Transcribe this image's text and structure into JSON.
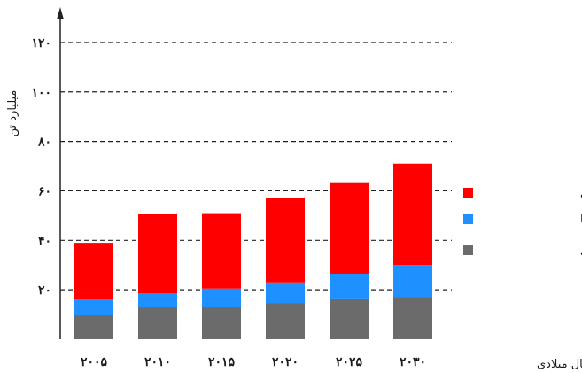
{
  "chart_data": {
    "type": "bar",
    "stacked": true,
    "categories": [
      "۲۰۰۵",
      "۲۰۱۰",
      "۲۰۱۵",
      "۲۰۲۰",
      "۲۰۲۵",
      "۲۰۳۰"
    ],
    "series": [
      {
        "name": "سوخت‌های فسیلی",
        "color": "#6b6b6b",
        "values": [
          10,
          13,
          13,
          14.5,
          16.5,
          17
        ]
      },
      {
        "name": "فلزها",
        "color": "#1e90ff",
        "values": [
          6,
          5.5,
          7.5,
          8.5,
          10,
          13
        ]
      },
      {
        "name": "مواد معدنی",
        "color": "#ff0000",
        "values": [
          23,
          32,
          30.5,
          34,
          37,
          41
        ]
      }
    ],
    "yticks": [
      {
        "value": 0,
        "label": ""
      },
      {
        "value": 20,
        "label": "۲۰"
      },
      {
        "value": 40,
        "label": "۴۰"
      },
      {
        "value": 60,
        "label": "۶۰"
      },
      {
        "value": 80,
        "label": "۸۰"
      },
      {
        "value": 100,
        "label": "۱۰۰"
      },
      {
        "value": 120,
        "label": "۱۲۰"
      }
    ],
    "ylim": [
      0,
      130
    ],
    "ylabel": "میلیارد تن",
    "xlabel": "سال میلادی",
    "grid": true,
    "legend": "right"
  },
  "colors": {
    "axis": "#222222"
  }
}
